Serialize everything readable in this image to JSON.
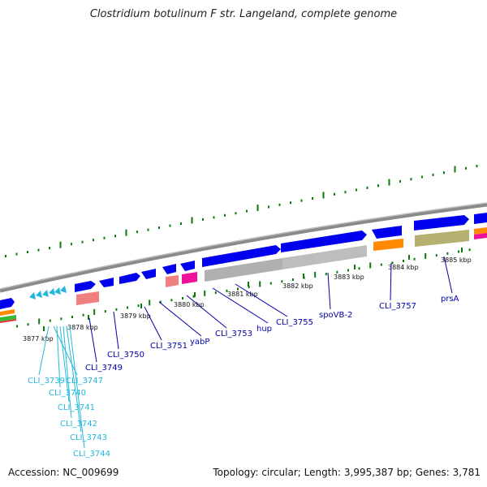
{
  "title": "Clostridium botulinum F str. Langeland, complete genome",
  "footer": {
    "accession": "Accession: NC_009699",
    "topology": "Topology: circular; Length: 3,995,387 bp; Genes: 3,781"
  },
  "colors": {
    "forward_cds": "#0000ee",
    "rna": "#ff8a00",
    "backbone": "#888888",
    "gc_tick": "#0a7a0a",
    "label_dark": "#0000aa",
    "label_light": "#22b8dd"
  },
  "ticks": [
    {
      "label": "3877 kbp"
    },
    {
      "label": "3878 kbp"
    },
    {
      "label": "3879 kbp"
    },
    {
      "label": "3880 kbp"
    },
    {
      "label": "3881 kbp"
    },
    {
      "label": "3882 kbp"
    },
    {
      "label": "3883 kbp"
    },
    {
      "label": "3884 kbp"
    },
    {
      "label": "3885 kbp"
    }
  ],
  "genes": [
    {
      "label": "CLI_3739"
    },
    {
      "label": "CLI_3747"
    },
    {
      "label": "CLI_3740"
    },
    {
      "label": "CLI_3741"
    },
    {
      "label": "CLI_3742"
    },
    {
      "label": "CLI_3743"
    },
    {
      "label": "CLI_3744"
    },
    {
      "label": "CLI_3749"
    },
    {
      "label": "CLI_3750"
    },
    {
      "label": "CLI_3751"
    },
    {
      "label": "yabP"
    },
    {
      "label": "CLI_3753"
    },
    {
      "label": "hup"
    },
    {
      "label": "CLI_3755"
    },
    {
      "label": "spoVB-2"
    },
    {
      "label": "CLI_3757"
    },
    {
      "label": "prsA"
    }
  ]
}
